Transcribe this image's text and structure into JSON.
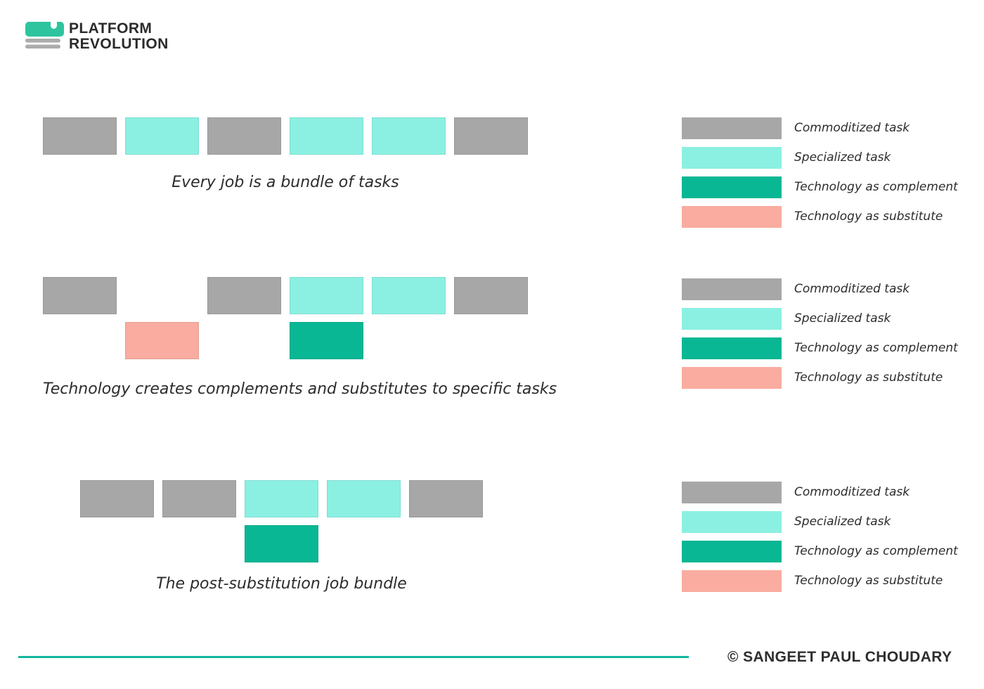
{
  "logo": {
    "line1": "PLATFORM",
    "line2": "REVOLUTION"
  },
  "colors": {
    "commoditized": "#A7A7A7",
    "specialized": "#8BF0E2",
    "complement": "#09B794",
    "substitute": "#F9AC9F",
    "divider": "#12B79E",
    "logo_teal": "#2EC49E",
    "logo_gray": "#ACACAC"
  },
  "legend_items": [
    {
      "type": "commoditized",
      "label": "Commoditized task"
    },
    {
      "type": "specialized",
      "label": "Specialized task"
    },
    {
      "type": "complement",
      "label": "Technology as complement"
    },
    {
      "type": "substitute",
      "label": "Technology as substitute"
    }
  ],
  "sections": [
    {
      "caption": "Every job is a bundle of tasks",
      "row1": [
        "commoditized",
        "specialized",
        "commoditized",
        "specialized",
        "specialized",
        "commoditized"
      ],
      "row2": []
    },
    {
      "caption": "Technology creates complements and substitutes to specific tasks",
      "row1": [
        "commoditized",
        null,
        "commoditized",
        "specialized",
        "specialized",
        "commoditized"
      ],
      "row2": [
        {
          "slot": 1,
          "type": "substitute"
        },
        {
          "slot": 3,
          "type": "complement"
        }
      ]
    },
    {
      "caption": "The post-substitution job bundle",
      "row1": [
        "commoditized",
        "commoditized",
        "specialized",
        "specialized",
        "commoditized"
      ],
      "row2": [
        {
          "slot": 2,
          "type": "complement"
        }
      ]
    }
  ],
  "footer": {
    "copyright": "© SANGEET PAUL CHOUDARY"
  }
}
